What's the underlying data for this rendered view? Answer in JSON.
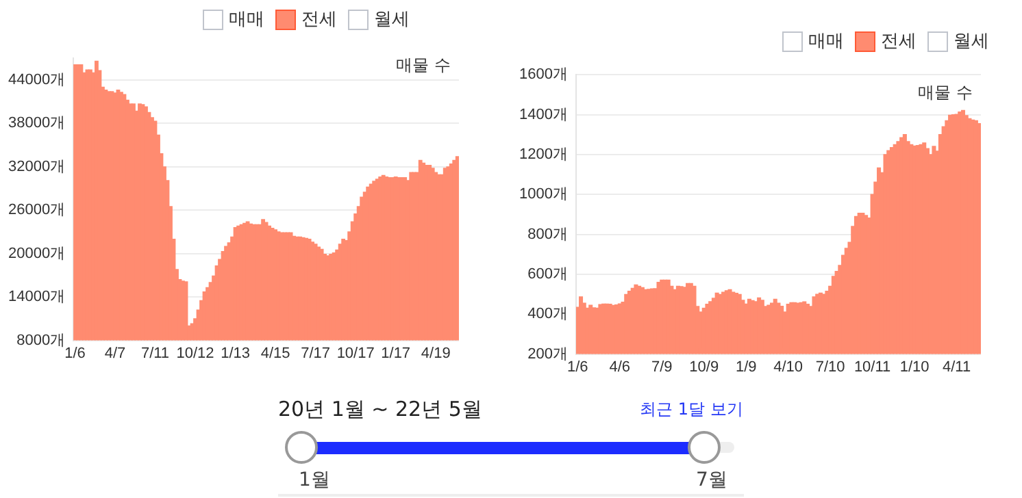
{
  "chart_data": [
    {
      "type": "bar",
      "legend": "top right",
      "grid": "y",
      "ylabel": "매물 수",
      "categories": [
        "1/6",
        null,
        null,
        null,
        null,
        null,
        null,
        null,
        null,
        null,
        null,
        null,
        null,
        "4/7",
        null,
        null,
        null,
        null,
        null,
        null,
        null,
        null,
        null,
        null,
        null,
        null,
        "7/11",
        null,
        null,
        null,
        null,
        null,
        null,
        null,
        null,
        null,
        null,
        null,
        null,
        "10/12",
        null,
        null,
        null,
        null,
        null,
        null,
        null,
        null,
        null,
        null,
        null,
        null,
        "1/13",
        null,
        null,
        null,
        null,
        null,
        null,
        null,
        null,
        null,
        null,
        null,
        null,
        "4/15",
        null,
        null,
        null,
        null,
        null,
        null,
        null,
        null,
        null,
        null,
        null,
        null,
        "7/17",
        null,
        null,
        null,
        null,
        null,
        null,
        null,
        null,
        null,
        null,
        null,
        null,
        "10/17",
        null,
        null,
        null,
        null,
        null,
        null,
        null,
        null,
        null,
        null,
        null,
        null,
        "1/17",
        null,
        null,
        null,
        null,
        null,
        null,
        null,
        null,
        null,
        null,
        null,
        null,
        "4/19",
        null,
        null,
        null,
        null,
        null,
        null,
        null
      ],
      "ylim": [
        8000,
        47000
      ],
      "yticks": [
        {
          "value": 8000,
          "label": "8000개"
        },
        {
          "value": 14000,
          "label": "14000개"
        },
        {
          "value": 20000,
          "label": "20000개"
        },
        {
          "value": 26000,
          "label": "26000개"
        },
        {
          "value": 32000,
          "label": "32000개"
        },
        {
          "value": 38000,
          "label": "38000개"
        },
        {
          "value": 44000,
          "label": "44000개"
        }
      ],
      "series": [
        {
          "name": "매매",
          "values": [
            null,
            null,
            null,
            null,
            null,
            null,
            null,
            null,
            null,
            null,
            null,
            null,
            null,
            null,
            null,
            null,
            null,
            null,
            null,
            null,
            null,
            null,
            null,
            null,
            null,
            null,
            null,
            null,
            null,
            null,
            null,
            null,
            null,
            null,
            null,
            null,
            null,
            null,
            null,
            null,
            null,
            null,
            null,
            null,
            null,
            null,
            null,
            null,
            null,
            null,
            null,
            null,
            null,
            null,
            null,
            null,
            null,
            null,
            null,
            null,
            null,
            null,
            null,
            null,
            null,
            null,
            null,
            null,
            null,
            null,
            null,
            null,
            null,
            null,
            null,
            null,
            null,
            null,
            null,
            null,
            null,
            null,
            null,
            null,
            null,
            null,
            null,
            null,
            null,
            null,
            null,
            null,
            null,
            null,
            null,
            null,
            null,
            null,
            null,
            null,
            null,
            null,
            null,
            null,
            null,
            null,
            null,
            null,
            null,
            null,
            null,
            null,
            null,
            null,
            null,
            null,
            null,
            null,
            null,
            null,
            null,
            null,
            null,
            null,
            null
          ]
        },
        {
          "name": "전세",
          "color": "#ff8b70",
          "values": [
            46100,
            46100,
            46100,
            45000,
            45400,
            45400,
            45000,
            46600,
            45300,
            43000,
            42600,
            42400,
            42400,
            42200,
            42600,
            42300,
            42000,
            41200,
            40700,
            40700,
            39700,
            40700,
            40600,
            40300,
            39500,
            38800,
            38300,
            36400,
            33800,
            32000,
            30100,
            26500,
            22000,
            17800,
            16400,
            16200,
            16100,
            10000,
            10300,
            11000,
            12200,
            13500,
            14700,
            15300,
            16000,
            16900,
            18300,
            19200,
            20300,
            21000,
            21500,
            22300,
            23600,
            23800,
            24000,
            24200,
            24400,
            24100,
            24000,
            24000,
            24000,
            24700,
            24300,
            23800,
            23500,
            23300,
            23000,
            22900,
            22900,
            22900,
            22900,
            22400,
            22300,
            22300,
            22200,
            22100,
            22000,
            21600,
            21300,
            20900,
            20600,
            19900,
            19700,
            19900,
            20100,
            20500,
            21300,
            22000,
            21800,
            23000,
            24400,
            25500,
            26500,
            27800,
            28500,
            29200,
            29600,
            30000,
            30300,
            30600,
            30800,
            30600,
            30500,
            30500,
            30600,
            30500,
            30500,
            30500,
            30100,
            31200,
            31200,
            31200,
            32900,
            32500,
            32200,
            32200,
            31800,
            31200,
            30900,
            30900,
            31800,
            32000,
            32400,
            32900,
            33400
          ]
        },
        {
          "name": "월세",
          "values": [
            null,
            null,
            null,
            null,
            null,
            null,
            null,
            null,
            null,
            null,
            null,
            null,
            null,
            null,
            null,
            null,
            null,
            null,
            null,
            null,
            null,
            null,
            null,
            null,
            null,
            null,
            null,
            null,
            null,
            null,
            null,
            null,
            null,
            null,
            null,
            null,
            null,
            null,
            null,
            null,
            null,
            null,
            null,
            null,
            null,
            null,
            null,
            null,
            null,
            null,
            null,
            null,
            null,
            null,
            null,
            null,
            null,
            null,
            null,
            null,
            null,
            null,
            null,
            null,
            null,
            null,
            null,
            null,
            null,
            null,
            null,
            null,
            null,
            null,
            null,
            null,
            null,
            null,
            null,
            null,
            null,
            null,
            null,
            null,
            null,
            null,
            null,
            null,
            null,
            null,
            null,
            null,
            null,
            null,
            null,
            null,
            null,
            null,
            null,
            null,
            null,
            null,
            null,
            null,
            null,
            null,
            null,
            null,
            null,
            null,
            null,
            null,
            null,
            null,
            null,
            null,
            null,
            null,
            null,
            null,
            null,
            null,
            null,
            null,
            null
          ]
        }
      ]
    },
    {
      "type": "bar",
      "legend": "top right",
      "grid": "y",
      "ylabel": "매물 수",
      "categories": [
        "1/6",
        null,
        null,
        null,
        null,
        null,
        null,
        null,
        null,
        null,
        null,
        null,
        null,
        "4/6",
        null,
        null,
        null,
        null,
        null,
        null,
        null,
        null,
        null,
        null,
        null,
        null,
        "7/9",
        null,
        null,
        null,
        null,
        null,
        null,
        null,
        null,
        null,
        null,
        null,
        null,
        "10/9",
        null,
        null,
        null,
        null,
        null,
        null,
        null,
        null,
        null,
        null,
        null,
        null,
        "1/9",
        null,
        null,
        null,
        null,
        null,
        null,
        null,
        null,
        null,
        null,
        null,
        null,
        "4/10",
        null,
        null,
        null,
        null,
        null,
        null,
        null,
        null,
        null,
        null,
        null,
        null,
        "7/10",
        null,
        null,
        null,
        null,
        null,
        null,
        null,
        null,
        null,
        null,
        null,
        null,
        "10/11",
        null,
        null,
        null,
        null,
        null,
        null,
        null,
        null,
        null,
        null,
        null,
        null,
        "1/10",
        null,
        null,
        null,
        null,
        null,
        null,
        null,
        null,
        null,
        null,
        null,
        null,
        "4/11",
        null,
        null,
        null,
        null,
        null,
        null,
        null
      ],
      "ylim": [
        200,
        1600
      ],
      "yticks": [
        {
          "value": 200,
          "label": "200개"
        },
        {
          "value": 400,
          "label": "400개"
        },
        {
          "value": 600,
          "label": "600개"
        },
        {
          "value": 800,
          "label": "800개"
        },
        {
          "value": 1000,
          "label": "1000개"
        },
        {
          "value": 1200,
          "label": "1200개"
        },
        {
          "value": 1400,
          "label": "1400개"
        },
        {
          "value": 1600,
          "label": "1600개"
        }
      ],
      "series": [
        {
          "name": "매매",
          "values": [
            null,
            null,
            null,
            null,
            null,
            null,
            null,
            null,
            null,
            null,
            null,
            null,
            null,
            null,
            null,
            null,
            null,
            null,
            null,
            null,
            null,
            null,
            null,
            null,
            null,
            null,
            null,
            null,
            null,
            null,
            null,
            null,
            null,
            null,
            null,
            null,
            null,
            null,
            null,
            null,
            null,
            null,
            null,
            null,
            null,
            null,
            null,
            null,
            null,
            null,
            null,
            null,
            null,
            null,
            null,
            null,
            null,
            null,
            null,
            null,
            null,
            null,
            null,
            null,
            null,
            null,
            null,
            null,
            null,
            null,
            null,
            null,
            null,
            null,
            null,
            null,
            null,
            null,
            null,
            null,
            null,
            null,
            null,
            null,
            null,
            null,
            null,
            null,
            null,
            null,
            null,
            null,
            null,
            null,
            null,
            null,
            null,
            null,
            null,
            null,
            null,
            null,
            null,
            null,
            null,
            null,
            null,
            null,
            null,
            null,
            null,
            null,
            null,
            null,
            null,
            null,
            null,
            null,
            null,
            null,
            null,
            null,
            null,
            null,
            null
          ]
        },
        {
          "name": "전세",
          "color": "#ff8b70",
          "values": [
            435,
            487,
            455,
            430,
            445,
            432,
            430,
            448,
            451,
            451,
            450,
            444,
            447,
            452,
            460,
            499,
            515,
            530,
            547,
            540,
            533,
            523,
            525,
            527,
            528,
            560,
            571,
            571,
            571,
            540,
            523,
            540,
            538,
            535,
            554,
            554,
            540,
            439,
            411,
            430,
            450,
            463,
            480,
            506,
            499,
            510,
            518,
            523,
            510,
            505,
            499,
            470,
            451,
            475,
            468,
            463,
            482,
            470,
            439,
            445,
            455,
            475,
            455,
            440,
            411,
            450,
            458,
            458,
            455,
            458,
            462,
            450,
            439,
            487,
            500,
            506,
            500,
            515,
            540,
            590,
            615,
            645,
            695,
            730,
            760,
            840,
            890,
            906,
            906,
            895,
            882,
            1000,
            1062,
            1133,
            1109,
            1200,
            1220,
            1235,
            1250,
            1265,
            1285,
            1300,
            1265,
            1250,
            1243,
            1245,
            1250,
            1258,
            1230,
            1200,
            1241,
            1217,
            1300,
            1340,
            1370,
            1397,
            1400,
            1401,
            1413,
            1421,
            1395,
            1380,
            1373,
            1370,
            1355
          ]
        },
        {
          "name": "월세",
          "values": [
            null,
            null,
            null,
            null,
            null,
            null,
            null,
            null,
            null,
            null,
            null,
            null,
            null,
            null,
            null,
            null,
            null,
            null,
            null,
            null,
            null,
            null,
            null,
            null,
            null,
            null,
            null,
            null,
            null,
            null,
            null,
            null,
            null,
            null,
            null,
            null,
            null,
            null,
            null,
            null,
            null,
            null,
            null,
            null,
            null,
            null,
            null,
            null,
            null,
            null,
            null,
            null,
            null,
            null,
            null,
            null,
            null,
            null,
            null,
            null,
            null,
            null,
            null,
            null,
            null,
            null,
            null,
            null,
            null,
            null,
            null,
            null,
            null,
            null,
            null,
            null,
            null,
            null,
            null,
            null,
            null,
            null,
            null,
            null,
            null,
            null,
            null,
            null,
            null,
            null,
            null,
            null,
            null,
            null,
            null,
            null,
            null,
            null,
            null,
            null,
            null,
            null,
            null,
            null,
            null,
            null,
            null,
            null,
            null,
            null,
            null,
            null,
            null,
            null,
            null,
            null,
            null,
            null,
            null,
            null,
            null,
            null,
            null,
            null,
            null
          ]
        }
      ]
    },
    {
      "type": "other",
      "annotations": [
        "20년 1월 ~ 22년 5월",
        "최근 1달 보기",
        "1월",
        "7월"
      ]
    }
  ]
}
